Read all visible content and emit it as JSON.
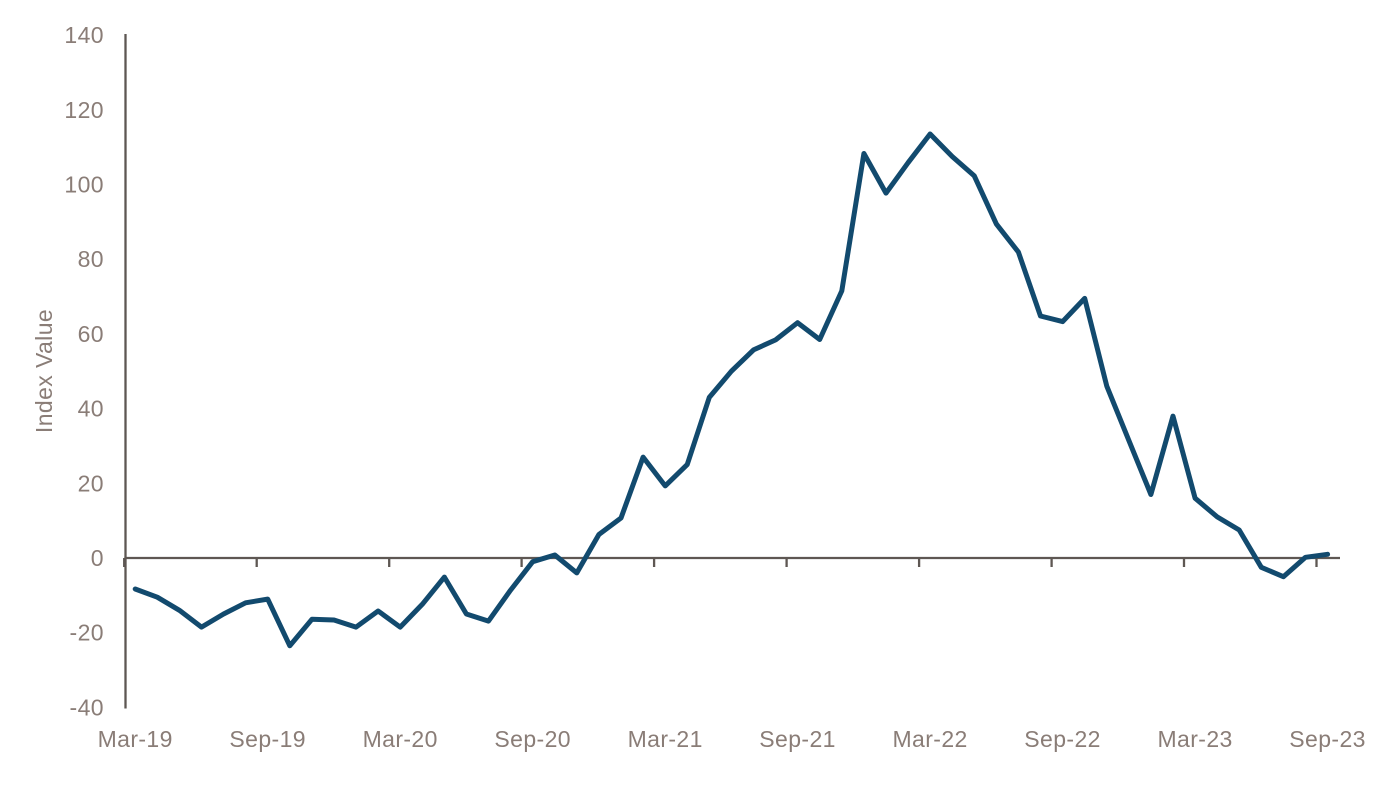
{
  "chart_data": {
    "type": "line",
    "title": "",
    "xlabel": "",
    "ylabel": "Index Value",
    "ylim": [
      -40,
      140
    ],
    "grid": false,
    "legend": "none",
    "y_ticks": [
      140,
      120,
      100,
      80,
      60,
      40,
      20,
      0,
      -20,
      -40
    ],
    "x_tick_labels": [
      "Mar-19",
      "Sep-19",
      "Mar-20",
      "Sep-20",
      "Mar-21",
      "Sep-21",
      "Mar-22",
      "Sep-22",
      "Mar-23",
      "Sep-23"
    ],
    "x": [
      "Mar-19",
      "Apr-19",
      "May-19",
      "Jun-19",
      "Jul-19",
      "Aug-19",
      "Sep-19",
      "Oct-19",
      "Nov-19",
      "Dec-19",
      "Jan-20",
      "Feb-20",
      "Mar-20",
      "Apr-20",
      "May-20",
      "Jun-20",
      "Jul-20",
      "Aug-20",
      "Sep-20",
      "Oct-20",
      "Nov-20",
      "Dec-20",
      "Jan-21",
      "Feb-21",
      "Mar-21",
      "Apr-21",
      "May-21",
      "Jun-21",
      "Jul-21",
      "Aug-21",
      "Sep-21",
      "Oct-21",
      "Nov-21",
      "Dec-21",
      "Jan-22",
      "Feb-22",
      "Mar-22",
      "Apr-22",
      "May-22",
      "Jun-22",
      "Jul-22",
      "Aug-22",
      "Sep-22",
      "Oct-22",
      "Nov-22",
      "Dec-22",
      "Jan-23",
      "Feb-23",
      "Mar-23",
      "Apr-23",
      "May-23",
      "Jun-23",
      "Jul-23",
      "Aug-23",
      "Sep-23"
    ],
    "series": [
      {
        "name": "Index Value",
        "values": [
          -8.3,
          -10.5,
          -14,
          -18.5,
          -15,
          -12,
          -11,
          -23.5,
          -16.4,
          -16.6,
          -18.5,
          -14.2,
          -18.5,
          -12.4,
          -5.1,
          -15,
          -16.9,
          -8.6,
          -1,
          0.8,
          -4,
          6.3,
          10.7,
          27,
          19.3,
          25,
          43,
          50,
          55.7,
          58.4,
          63,
          58.5,
          71.5,
          108.3,
          97.7,
          105.8,
          113.5,
          107.5,
          102.3,
          89.4,
          81.9,
          64.8,
          63.3,
          69.5,
          46,
          31.5,
          17,
          38,
          16,
          11,
          7.5,
          -2.5,
          -5,
          0.2,
          1
        ]
      }
    ],
    "colors": {
      "line": "#124a6e",
      "axis": "#5e5753",
      "labels": "#8a7d77",
      "background": "#ffffff"
    }
  }
}
